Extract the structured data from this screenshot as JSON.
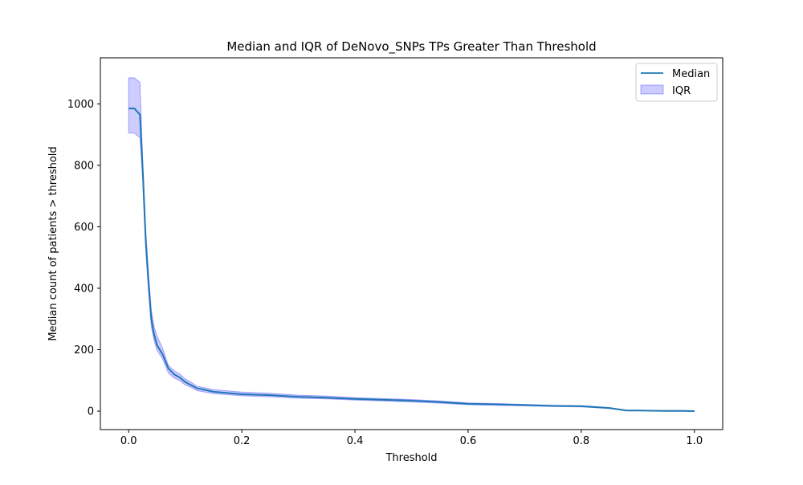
{
  "chart_data": {
    "type": "line",
    "title": "Median and IQR of DeNovo_SNPs TPs Greater Than Threshold",
    "xlabel": "Threshold",
    "ylabel": "Median count of patients > threshold",
    "xlim": [
      -0.05,
      1.05
    ],
    "ylim": [
      -60,
      1150
    ],
    "xticks": [
      0.0,
      0.2,
      0.4,
      0.6,
      0.8,
      1.0
    ],
    "xtick_labels": [
      "0.0",
      "0.2",
      "0.4",
      "0.6",
      "0.8",
      "1.0"
    ],
    "yticks": [
      0,
      200,
      400,
      600,
      800,
      1000
    ],
    "ytick_labels": [
      "0",
      "200",
      "400",
      "600",
      "800",
      "1000"
    ],
    "grid": false,
    "legend_position": "top-right",
    "series": [
      {
        "name": "Median",
        "kind": "line",
        "color": "#1f77b4",
        "x": [
          0.0,
          0.01,
          0.02,
          0.025,
          0.03,
          0.035,
          0.04,
          0.045,
          0.05,
          0.06,
          0.07,
          0.08,
          0.09,
          0.1,
          0.11,
          0.12,
          0.15,
          0.2,
          0.25,
          0.3,
          0.35,
          0.4,
          0.45,
          0.5,
          0.55,
          0.6,
          0.65,
          0.7,
          0.75,
          0.8,
          0.85,
          0.88,
          0.9,
          0.95,
          0.98,
          1.0
        ],
        "y": [
          985,
          985,
          965,
          780,
          560,
          420,
          300,
          250,
          215,
          185,
          140,
          120,
          110,
          95,
          85,
          75,
          63,
          55,
          52,
          47,
          44,
          40,
          37,
          34,
          30,
          24,
          22,
          20,
          17,
          16,
          10,
          2,
          2,
          1,
          1,
          0
        ]
      },
      {
        "name": "IQR",
        "kind": "band",
        "color": "#0000ff",
        "x": [
          0.0,
          0.01,
          0.02,
          0.025,
          0.03,
          0.035,
          0.04,
          0.045,
          0.05,
          0.06,
          0.07,
          0.08,
          0.09,
          0.1,
          0.11,
          0.12,
          0.15,
          0.2,
          0.25,
          0.3,
          0.35,
          0.4,
          0.45,
          0.5,
          0.55,
          0.6,
          0.65,
          0.7,
          0.75,
          0.8,
          0.85,
          0.88,
          0.9,
          0.95,
          0.98,
          1.0
        ],
        "lower": [
          905,
          905,
          890,
          750,
          530,
          390,
          275,
          230,
          198,
          170,
          125,
          108,
          100,
          85,
          78,
          67,
          57,
          50,
          47,
          42,
          40,
          36,
          33,
          30,
          26,
          21,
          19,
          17,
          15,
          14,
          9,
          2,
          2,
          1,
          1,
          0
        ],
        "upper": [
          1085,
          1085,
          1070,
          810,
          595,
          450,
          330,
          275,
          245,
          205,
          150,
          132,
          122,
          105,
          95,
          82,
          70,
          62,
          58,
          52,
          49,
          44,
          41,
          38,
          33,
          27,
          25,
          22,
          19,
          18,
          12,
          3,
          3,
          2,
          2,
          1
        ]
      }
    ]
  }
}
